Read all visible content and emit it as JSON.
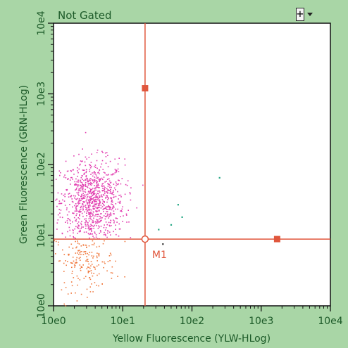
{
  "header": {
    "gate_label": "Not Gated",
    "add_button_label": "+"
  },
  "colors": {
    "background": "#a9d6a6",
    "plot_area": "#ffffff",
    "cursor_line": "#e0563c",
    "upper_left_events": "#e23fb0",
    "lower_left_events": "#f07a40",
    "upper_right_events": "#27a886",
    "lower_right_events": "#333333",
    "axis_text": "#1c5a28"
  },
  "chart_data": {
    "type": "scatter",
    "title": "Not Gated",
    "xlabel": "Yellow Fluorescence (YLW-HLog)",
    "ylabel": "Green Fluorescence (GRN-HLog)",
    "x_scale": "log",
    "y_scale": "log",
    "xlim": [
      1,
      10000
    ],
    "ylim": [
      1,
      10000
    ],
    "x_ticks": [
      "10e0",
      "10e1",
      "10e2",
      "10e3",
      "10e4"
    ],
    "y_ticks": [
      "10e0",
      "10e1",
      "10e2",
      "10e3",
      "10e4"
    ],
    "grid": false,
    "quadrant_cursor": {
      "marker_label": "M1",
      "x": 21,
      "y": 8.8
    },
    "cursor_handles": [
      {
        "x": 21,
        "y": 1200
      },
      {
        "x": 1700,
        "y": 8.8
      }
    ],
    "series": [
      {
        "name": "",
        "description_color": "upper_left_events",
        "cluster": {
          "center_x": 3.6,
          "center_y": 30,
          "spread_x_log": 0.23,
          "spread_y_log": 0.3,
          "count": 900,
          "x_max": 20,
          "y_min": 9
        }
      },
      {
        "name": "",
        "description_color": "lower_left_events",
        "cluster": {
          "center_x": 2.8,
          "center_y": 4.5,
          "spread_x_log": 0.22,
          "spread_y_log": 0.22,
          "count": 180,
          "x_max": 20,
          "y_max": 8.6
        }
      },
      {
        "name": "",
        "description_color": "upper_right_events",
        "points": [
          {
            "x": 250,
            "y": 65
          },
          {
            "x": 63,
            "y": 27
          },
          {
            "x": 72,
            "y": 18
          },
          {
            "x": 50,
            "y": 14
          },
          {
            "x": 33,
            "y": 12
          }
        ]
      },
      {
        "name": "",
        "description_color": "lower_right_events",
        "points": [
          {
            "x": 38,
            "y": 7.5
          }
        ]
      }
    ]
  }
}
